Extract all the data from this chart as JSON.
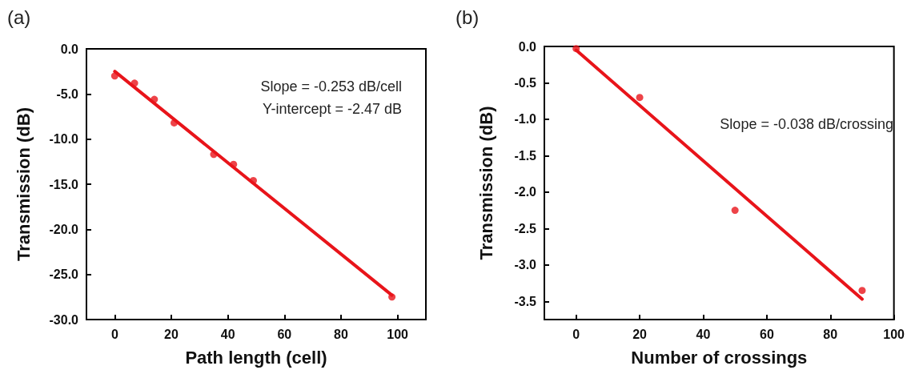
{
  "chart_data": [
    {
      "type": "scatter",
      "title": "(a)",
      "xlabel": "Path length (cell)",
      "ylabel": "Transmission (dB)",
      "annotations": [
        "Slope = -0.253 dB/cell",
        "Y-intercept = -2.47 dB"
      ],
      "x": [
        0,
        7,
        14,
        21,
        35,
        42,
        49,
        98
      ],
      "xlim": [
        -10,
        110
      ],
      "xticks": [
        0,
        20,
        40,
        60,
        80,
        100
      ],
      "ylim": [
        -30,
        0
      ],
      "yticks": [
        {
          "value": 0,
          "label": "0.0"
        },
        {
          "value": -5,
          "label": "-5.0"
        },
        {
          "value": -10,
          "label": "-10.0"
        },
        {
          "value": -15,
          "label": "-15.0"
        },
        {
          "value": -20,
          "label": "-20.0"
        },
        {
          "value": -25,
          "label": "-25.0"
        },
        {
          "value": -30,
          "label": "-30.0"
        }
      ],
      "grid": false,
      "marker": "circle",
      "series": [
        {
          "color": "#e8141a",
          "values": [
            -3.0,
            -3.8,
            -5.6,
            -8.2,
            -11.7,
            -12.8,
            -14.6,
            -27.5
          ]
        },
        {
          "type": "line",
          "color": "#e8141a",
          "x": [
            0,
            98
          ],
          "values": [
            -2.5,
            -27.3
          ],
          "marker": "none",
          "line_style": "solid"
        }
      ]
    },
    {
      "type": "scatter",
      "title": "(b)",
      "xlabel": "Number of crossings",
      "ylabel": "Transmission (dB)",
      "annotations": [
        "Slope = -0.038 dB/crossing"
      ],
      "x": [
        0,
        20,
        50,
        90
      ],
      "xlim": [
        -10,
        100
      ],
      "xticks": [
        0,
        20,
        40,
        60,
        80,
        100
      ],
      "ylim": [
        -3.75,
        0
      ],
      "yticks": [
        {
          "value": 0,
          "label": "0.0"
        },
        {
          "value": -0.5,
          "label": "-0.5"
        },
        {
          "value": -1,
          "label": "-1.0"
        },
        {
          "value": -1.5,
          "label": "-1.5"
        },
        {
          "value": -2,
          "label": "-2.0"
        },
        {
          "value": -2.5,
          "label": "-2.5"
        },
        {
          "value": -3,
          "label": "-3.0"
        },
        {
          "value": -3.5,
          "label": "-3.5"
        }
      ],
      "grid": false,
      "marker": "circle",
      "series": [
        {
          "color": "#e8141a",
          "values": [
            -0.03,
            -0.7,
            -2.25,
            -3.35
          ]
        },
        {
          "type": "line",
          "color": "#e8141a",
          "x": [
            0,
            90
          ],
          "values": [
            -0.05,
            -3.47
          ],
          "marker": "none",
          "line_style": "solid"
        }
      ]
    }
  ]
}
